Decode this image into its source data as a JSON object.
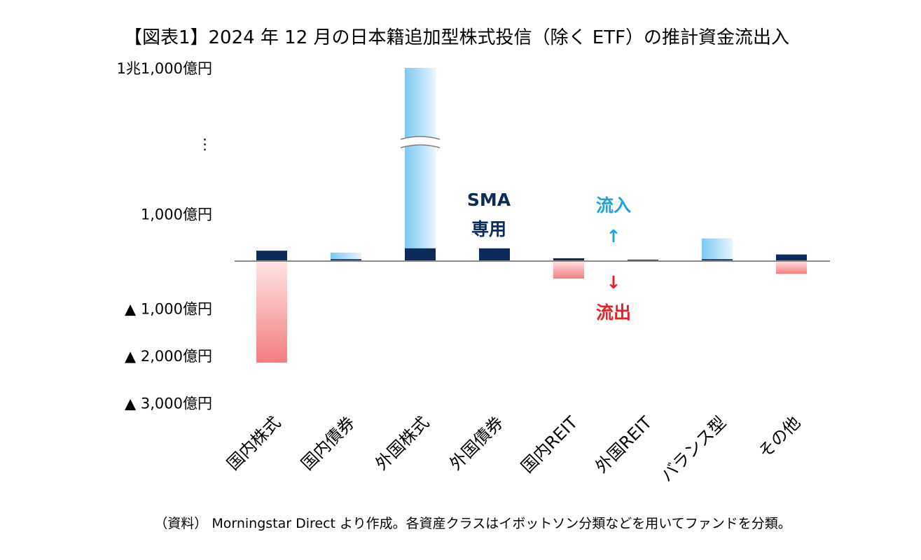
{
  "chart_data": {
    "type": "bar",
    "title": "【図表1】2024 年 12 月の日本籍追加型株式投信（除く ETF）の推計資金流出入",
    "categories": [
      "国内株式",
      "国内債券",
      "外国株式",
      "外国債券",
      "国内REIT",
      "外国REIT",
      "バランス型",
      "その他"
    ],
    "series": [
      {
        "name": "資金流出入",
        "values": [
          -2150,
          180,
          11000,
          0,
          -370,
          0,
          480,
          -270
        ]
      },
      {
        "name": "SMA専用",
        "values": [
          220,
          40,
          270,
          270,
          60,
          30,
          40,
          140
        ]
      }
    ],
    "y_ticks": [
      {
        "label": "1兆1,000億円",
        "value": 11000
      },
      {
        "label": "⋮",
        "value": null
      },
      {
        "label": "1,000億円",
        "value": 1000
      },
      {
        "label": "▲ 1,000億円",
        "value": -1000
      },
      {
        "label": "▲ 2,000億円",
        "value": -2000
      },
      {
        "label": "▲ 3,000億円",
        "value": -3000
      }
    ],
    "ylim": [
      -3000,
      11000
    ],
    "axis_break": true,
    "annotations": {
      "sma_line1": "SMA",
      "sma_line2": "専用",
      "inflow_label": "流入",
      "inflow_arrow": "↑",
      "outflow_arrow": "↓",
      "outflow_label": "流出"
    },
    "colors": {
      "inflow": "#8fd0f5",
      "outflow": "#f48b8b",
      "sma": "#0d2b5a"
    },
    "source_note": "（資料） Morningstar Direct より作成。各資産クラスはイボットソン分類などを用いてファンドを分類。"
  }
}
